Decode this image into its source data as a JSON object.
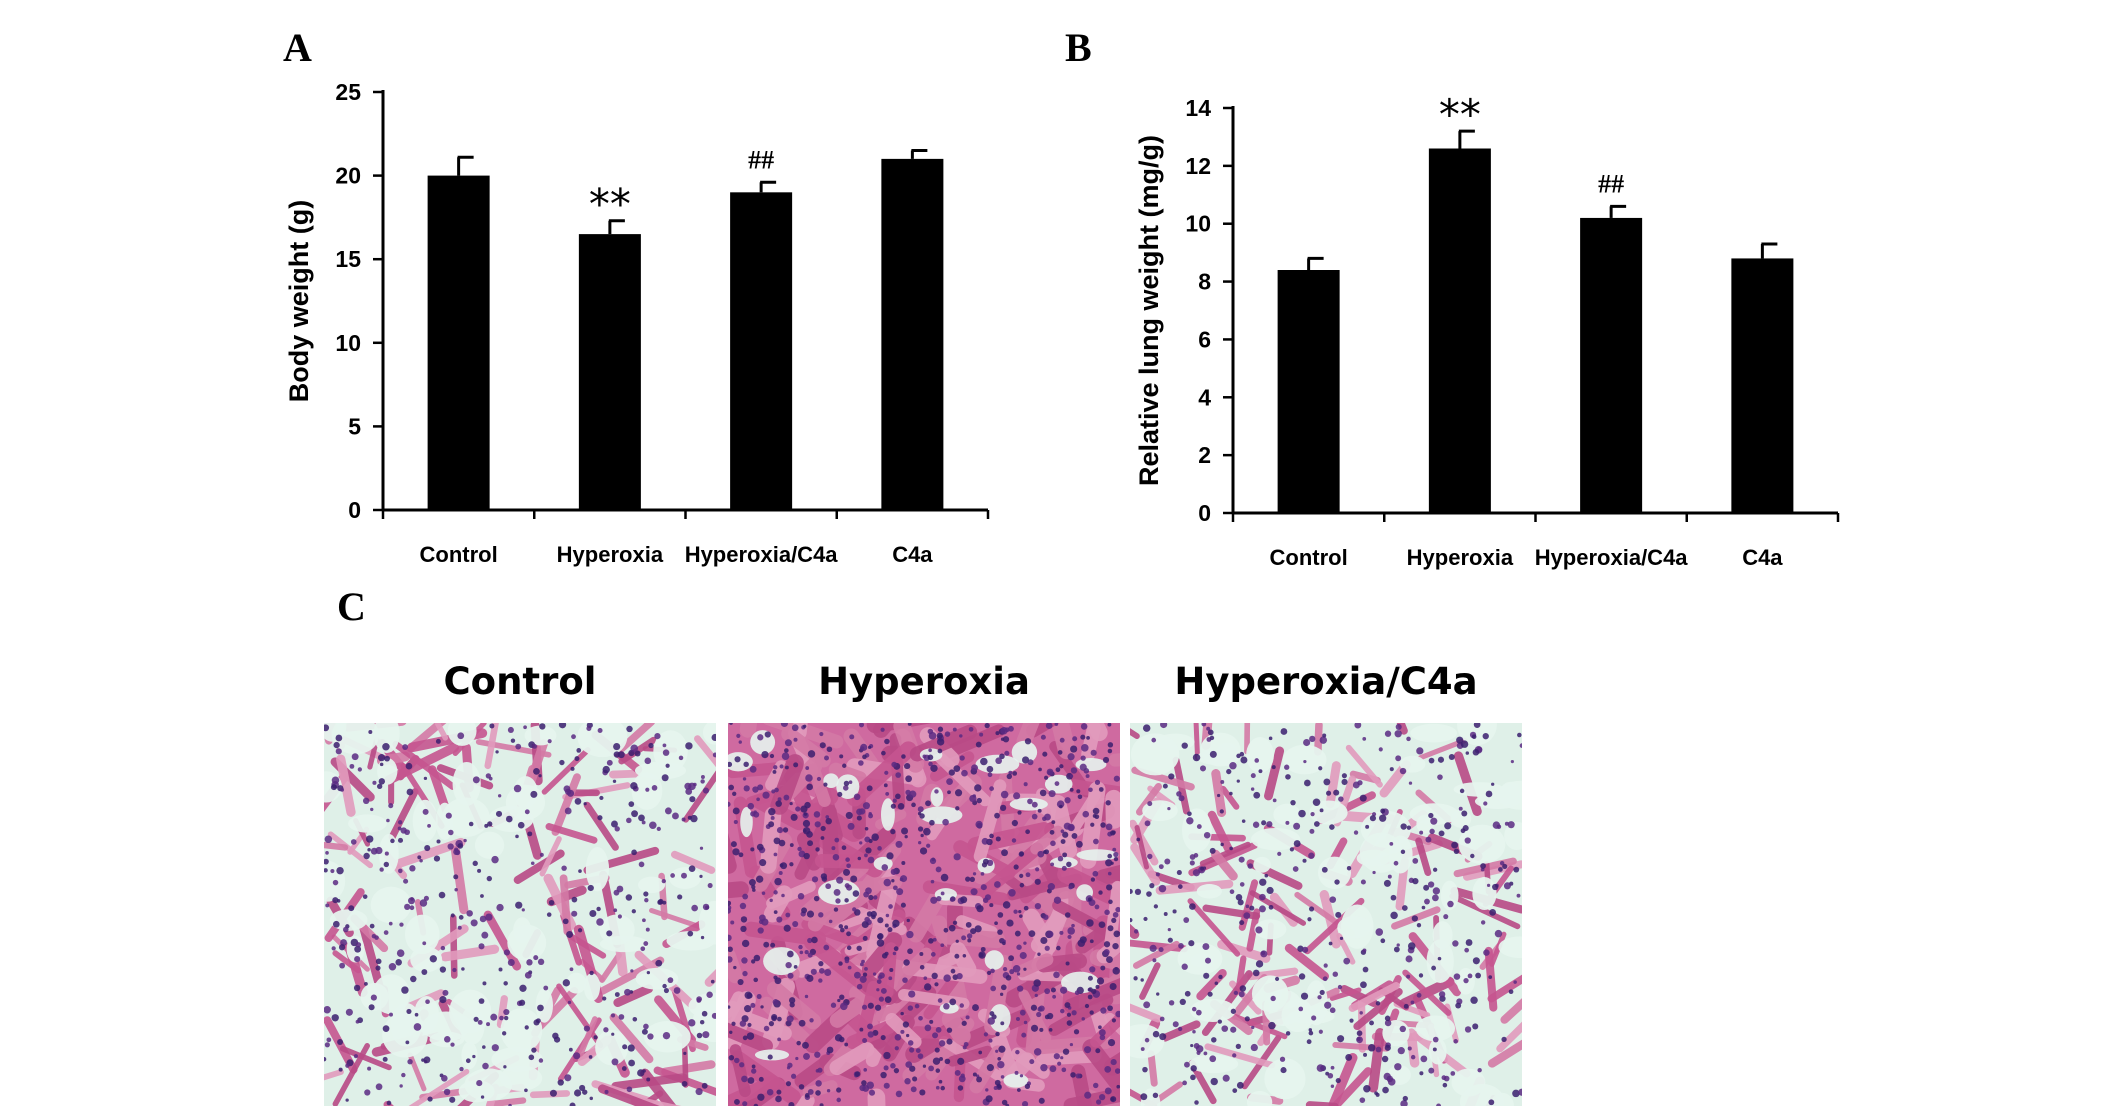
{
  "panels": {
    "a": "A",
    "b": "B",
    "c": "C"
  },
  "chart_data": [
    {
      "type": "bar",
      "panel": "A",
      "categories": [
        "Control",
        "Hyperoxia",
        "Hyperoxia/C4a",
        "C4a"
      ],
      "values": [
        20.0,
        16.5,
        19.0,
        21.0
      ],
      "errors": [
        1.1,
        0.8,
        0.6,
        0.5
      ],
      "annotations": [
        "",
        "**",
        "##",
        ""
      ],
      "ylabel": "Body weight (g)",
      "ylim": [
        0,
        25
      ],
      "yticks": [
        0,
        5,
        10,
        15,
        20,
        25
      ],
      "bar_color": "#000000",
      "grid": false
    },
    {
      "type": "bar",
      "panel": "B",
      "categories": [
        "Control",
        "Hyperoxia",
        "Hyperoxia/C4a",
        "C4a"
      ],
      "values": [
        8.4,
        12.6,
        10.2,
        8.8
      ],
      "errors": [
        0.4,
        0.6,
        0.4,
        0.5
      ],
      "annotations": [
        "",
        "**",
        "##",
        ""
      ],
      "ylabel": "Relative lung weight (mg/g)",
      "ylim": [
        0,
        14
      ],
      "yticks": [
        0,
        2,
        4,
        6,
        8,
        10,
        12,
        14
      ],
      "bar_color": "#000000",
      "grid": false
    }
  ],
  "micrographs": [
    {
      "title": "Control",
      "stain": "H&E",
      "density": "low"
    },
    {
      "title": "Hyperoxia",
      "stain": "H&E",
      "density": "high"
    },
    {
      "title": "Hyperoxia/C4a",
      "stain": "H&E",
      "density": "low"
    }
  ]
}
